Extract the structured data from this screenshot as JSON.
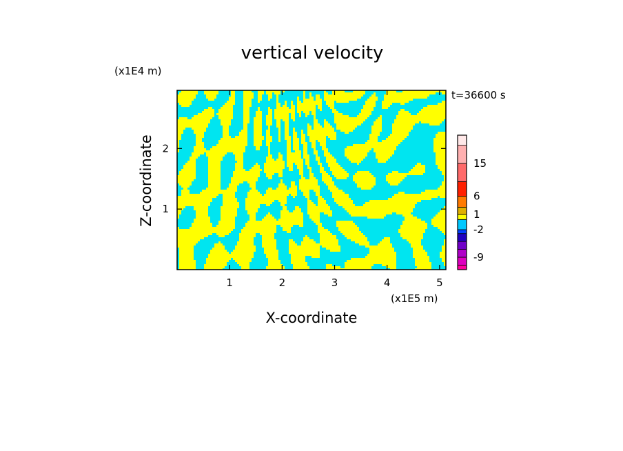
{
  "chart_data": {
    "type": "heatmap",
    "title": "vertical velocity",
    "xlabel": "X-coordinate",
    "ylabel": "Z-coordinate",
    "x_unit": "(x1E5 m)",
    "y_unit": "(x1E4 m)",
    "time_label": "t=36600 s",
    "xlim": [
      0,
      5.12
    ],
    "ylim": [
      0,
      2.96
    ],
    "x_ticks": [
      "1",
      "2",
      "3",
      "4",
      "5"
    ],
    "x_tick_values": [
      1,
      2,
      3,
      4,
      5
    ],
    "y_ticks": [
      "1",
      "2"
    ],
    "y_tick_values": [
      1,
      2
    ],
    "field_colors": [
      "#ffff00",
      "#00e5f0"
    ],
    "colorbar": {
      "labels": [
        "15",
        "6",
        "1",
        "-2",
        "-9"
      ],
      "label_values": [
        15,
        6,
        1,
        -2,
        -9
      ],
      "levels": [
        {
          "color": "#ff00a0"
        },
        {
          "color": "#dd00c0"
        },
        {
          "color": "#b000c8"
        },
        {
          "color": "#7000c8"
        },
        {
          "color": "#2000c0"
        },
        {
          "color": "#0040ff"
        },
        {
          "color": "#00c8ff"
        },
        {
          "color": "#ffff00"
        },
        {
          "color": "#e0b000"
        },
        {
          "color": "#ff7a00"
        },
        {
          "color": "#ff2000"
        },
        {
          "color": "#ff6a6a"
        },
        {
          "color": "#ffb0b0"
        },
        {
          "color": "#ffe8e8"
        }
      ]
    }
  }
}
